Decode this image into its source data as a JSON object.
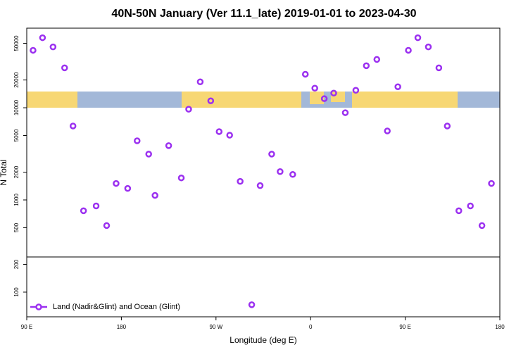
{
  "chart_data": {
    "type": "scatter",
    "title": "40N-50N January (Ver 11.1_late)   2019-01-01 to 2023-04-30",
    "x_label": "Longitude (deg E)",
    "y_label": "N Total",
    "log_y": true,
    "legend": "bottom-left",
    "xlim": [
      90,
      540
    ],
    "xticks": [
      {
        "value": 90,
        "label": "90 E"
      },
      180,
      {
        "value": 270,
        "label": "90 W"
      },
      {
        "value": 360,
        "label": "0"
      },
      {
        "value": 450,
        "label": "90 E"
      },
      {
        "value": 540,
        "label": "180"
      }
    ],
    "ylim": [
      54,
      73000
    ],
    "yticks": [
      100,
      200,
      500,
      1000,
      2000,
      5000,
      10000,
      20000,
      50000
    ],
    "series": [
      {
        "name": "Land (Nadir&Glint) and Ocean (Glint)",
        "color": "#9b30f0",
        "x": [
          96,
          105,
          115,
          126,
          134,
          144,
          156,
          166,
          175,
          186,
          195,
          206,
          212,
          225,
          237,
          244,
          255,
          265,
          273,
          283,
          293,
          304,
          312,
          323,
          331,
          343,
          355,
          364,
          373,
          382,
          393,
          403,
          413,
          423,
          433,
          443,
          453,
          462,
          472,
          482,
          490,
          501,
          512,
          523,
          532
        ],
        "values": [
          42000,
          57500,
          45700,
          27100,
          6340,
          763,
          861,
          527,
          1510,
          1333,
          4380,
          3145,
          1120,
          3880,
          1734,
          9640,
          19100,
          11890,
          5510,
          5040,
          1590,
          73,
          1430,
          3145,
          2030,
          1890,
          23100,
          16300,
          12540,
          14420,
          8840,
          15460,
          28580,
          33420,
          5600,
          16900,
          42000,
          57500,
          45700,
          27100,
          6340,
          763,
          861,
          527,
          1510
        ]
      }
    ]
  }
}
